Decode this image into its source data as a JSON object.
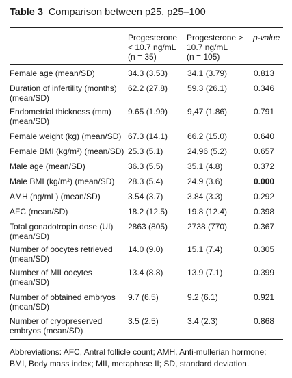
{
  "table": {
    "label": "Table 3",
    "caption": "Comparison between p25, p25–100",
    "headers": {
      "col1_line1": "Progesterone",
      "col1_line2": "< 10.7 ng/mL",
      "col1_line3": "(n = 35)",
      "col2_line1": "Progesterone >",
      "col2_line2": "10.7 ng/mL",
      "col2_line3": "(n = 105)",
      "col3": "p-value"
    },
    "rows": [
      {
        "label": "Female age (mean/SD)",
        "v1": "34.3 (3.53)",
        "v2": "34.1 (3.79)",
        "p": "0.813"
      },
      {
        "label": "Duration of infertility (months) (mean/SD)",
        "v1": "62.2 (27.8)",
        "v2": "59.3 (26.1)",
        "p": "0.346"
      },
      {
        "label": "Endometrial thickness (mm) (mean/SD)",
        "v1": "9.65 (1.99)",
        "v2": "9,47 (1.86)",
        "p": "0.791"
      },
      {
        "label": "Female weight (kg) (mean/SD)",
        "v1": "67.3 (14.1)",
        "v2": "66.2 (15.0)",
        "p": "0.640"
      },
      {
        "label": "Female BMI (kg/m²) (mean/SD)",
        "v1": "25.3 (5.1)",
        "v2": "24,96 (5.2)",
        "p": "0.657"
      },
      {
        "label": "Male age (mean/SD)",
        "v1": "36.3 (5.5)",
        "v2": "35.1 (4.8)",
        "p": "0.372"
      },
      {
        "label": "Male BMI (kg/m²) (mean/SD)",
        "v1": "28.3 (5.4)",
        "v2": "24.9 (3.6)",
        "p": "0.000"
      },
      {
        "label": "AMH (ng/mL) (mean/SD)",
        "v1": "3.54 (3.7)",
        "v2": "3.84 (3.3)",
        "p": "0.292"
      },
      {
        "label": "AFC (mean/SD)",
        "v1": "18.2 (12.5)",
        "v2": "19.8 (12.4)",
        "p": "0.398"
      },
      {
        "label": "Total gonadotropin dose (UI) (mean/SD)",
        "v1": "2863 (805)",
        "v2": "2738 (770)",
        "p": "0.367"
      },
      {
        "label": "Number of oocytes retrieved (mean/SD)",
        "v1": "14.0 (9.0)",
        "v2": "15.1 (7.4)",
        "p": "0.305"
      },
      {
        "label": "Number of MII oocytes (mean/SD)",
        "v1": "13.4 (8.8)",
        "v2": "13.9 (7.1)",
        "p": "0.399"
      },
      {
        "label": "Number of obtained embryos (mean/SD)",
        "v1": "9.7 (6.5)",
        "v2": "9.2 (6.1)",
        "p": "0.921"
      },
      {
        "label": "Number of cryopreserved embryos (mean/SD)",
        "v1": "3.5 (2.5)",
        "v2": "3.4 (2.3)",
        "p": "0.868"
      }
    ],
    "footnote": "Abbreviations: AFC, Antral follicle count; AMH, Anti-mullerian hormone; BMI, Body mass index; MII, metaphase II; SD, standard deviation."
  }
}
